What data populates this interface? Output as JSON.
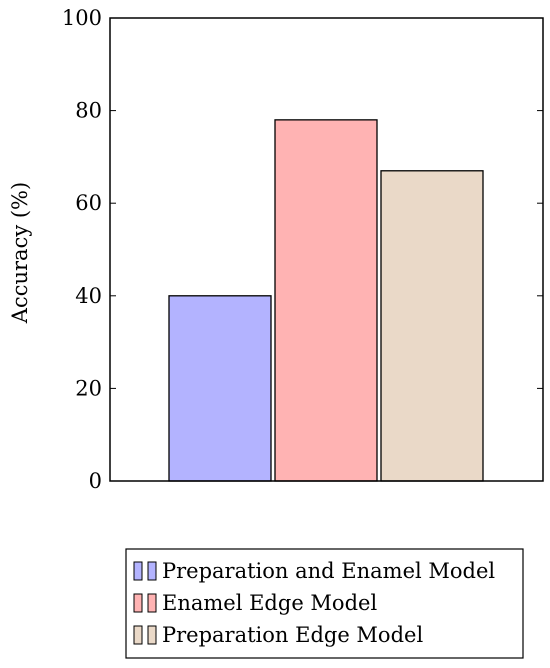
{
  "chart_data": {
    "type": "bar",
    "title": "",
    "xlabel": "",
    "ylabel": "Accuracy (%)",
    "ylim": [
      0,
      100
    ],
    "yticks": [
      0,
      20,
      40,
      60,
      80,
      100
    ],
    "grid": false,
    "legend_position": "bottom",
    "series": [
      {
        "name": "Preparation and Enamel Model",
        "value": 40,
        "color": "#b3b3ff"
      },
      {
        "name": "Enamel Edge Model",
        "value": 78,
        "color": "#ffb3b3"
      },
      {
        "name": "Preparation Edge Model",
        "value": 67,
        "color": "#ead9c8"
      }
    ]
  }
}
